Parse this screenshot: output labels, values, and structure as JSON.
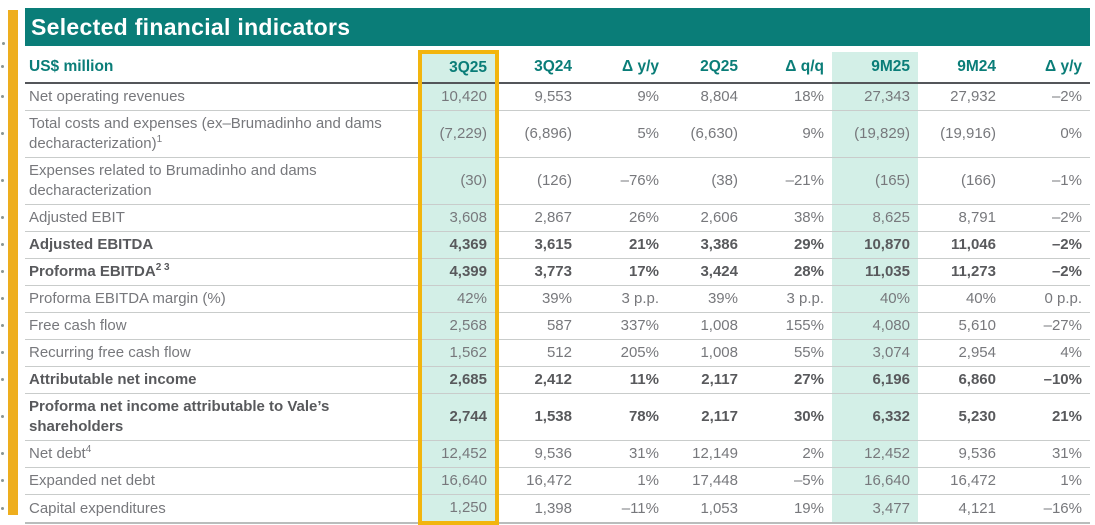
{
  "title": "Selected financial indicators",
  "colors": {
    "teal": "#0A7D78",
    "mint": "#D3EFE7",
    "gold_bar": "#EEAE1E",
    "gold_border": "#F2B50E",
    "text_regular": "#77787C",
    "text_bold": "#58595C"
  },
  "table": {
    "unit_label": "US$ million",
    "columns": [
      {
        "label": "3Q25",
        "highlight": "gold-boxed-mint"
      },
      {
        "label": "3Q24",
        "highlight": "none"
      },
      {
        "label": "Δ y/y",
        "highlight": "none"
      },
      {
        "label": "2Q25",
        "highlight": "none"
      },
      {
        "label": "Δ q/q",
        "highlight": "none"
      },
      {
        "label": "9M25",
        "highlight": "mint"
      },
      {
        "label": "9M24",
        "highlight": "none"
      },
      {
        "label": "Δ y/y",
        "highlight": "none"
      }
    ],
    "rows": [
      {
        "label": "Net operating revenues",
        "sup": "",
        "bold": false,
        "values": [
          "10,420",
          "9,553",
          "9%",
          "8,804",
          "18%",
          "27,343",
          "27,932",
          "–2%"
        ]
      },
      {
        "label": "Total costs and expenses (ex–Brumadinho and dams decharacterization)",
        "sup": "1",
        "bold": false,
        "values": [
          "(7,229)",
          "(6,896)",
          "5%",
          "(6,630)",
          "9%",
          "(19,829)",
          "(19,916)",
          "0%"
        ]
      },
      {
        "label": "Expenses related to Brumadinho and dams decharacterization",
        "sup": "",
        "bold": false,
        "values": [
          "(30)",
          "(126)",
          "–76%",
          "(38)",
          "–21%",
          "(165)",
          "(166)",
          "–1%"
        ]
      },
      {
        "label": "Adjusted EBIT",
        "sup": "",
        "bold": false,
        "values": [
          "3,608",
          "2,867",
          "26%",
          "2,606",
          "38%",
          "8,625",
          "8,791",
          "–2%"
        ]
      },
      {
        "label": "Adjusted EBITDA",
        "sup": "",
        "bold": true,
        "values": [
          "4,369",
          "3,615",
          "21%",
          "3,386",
          "29%",
          "10,870",
          "11,046",
          "–2%"
        ]
      },
      {
        "label": "Proforma EBITDA",
        "sup": "2 3",
        "bold": true,
        "values": [
          "4,399",
          "3,773",
          "17%",
          "3,424",
          "28%",
          "11,035",
          "11,273",
          "–2%"
        ]
      },
      {
        "label": "Proforma EBITDA margin (%)",
        "sup": "",
        "bold": false,
        "values": [
          "42%",
          "39%",
          "3 p.p.",
          "39%",
          "3 p.p.",
          "40%",
          "40%",
          "0 p.p."
        ]
      },
      {
        "label": "Free cash flow",
        "sup": "",
        "bold": false,
        "values": [
          "2,568",
          "587",
          "337%",
          "1,008",
          "155%",
          "4,080",
          "5,610",
          "–27%"
        ]
      },
      {
        "label": "Recurring free cash flow",
        "sup": "",
        "bold": false,
        "values": [
          "1,562",
          "512",
          "205%",
          "1,008",
          "55%",
          "3,074",
          "2,954",
          "4%"
        ]
      },
      {
        "label": "Attributable net income",
        "sup": "",
        "bold": true,
        "values": [
          "2,685",
          "2,412",
          "11%",
          "2,117",
          "27%",
          "6,196",
          "6,860",
          "–10%"
        ]
      },
      {
        "label": "Proforma net income attributable to Vale’s shareholders",
        "sup": "",
        "bold": true,
        "values": [
          "2,744",
          "1,538",
          "78%",
          "2,117",
          "30%",
          "6,332",
          "5,230",
          "21%"
        ]
      },
      {
        "label": "Net debt",
        "sup": "4",
        "bold": false,
        "values": [
          "12,452",
          "9,536",
          "31%",
          "12,149",
          "2%",
          "12,452",
          "9,536",
          "31%"
        ]
      },
      {
        "label": "Expanded net debt",
        "sup": "",
        "bold": false,
        "values": [
          "16,640",
          "16,472",
          "1%",
          "17,448",
          "–5%",
          "16,640",
          "16,472",
          "1%"
        ]
      },
      {
        "label": "Capital expenditures",
        "sup": "",
        "bold": false,
        "values": [
          "1,250",
          "1,398",
          "–11%",
          "1,053",
          "19%",
          "3,477",
          "4,121",
          "–16%"
        ]
      }
    ]
  }
}
